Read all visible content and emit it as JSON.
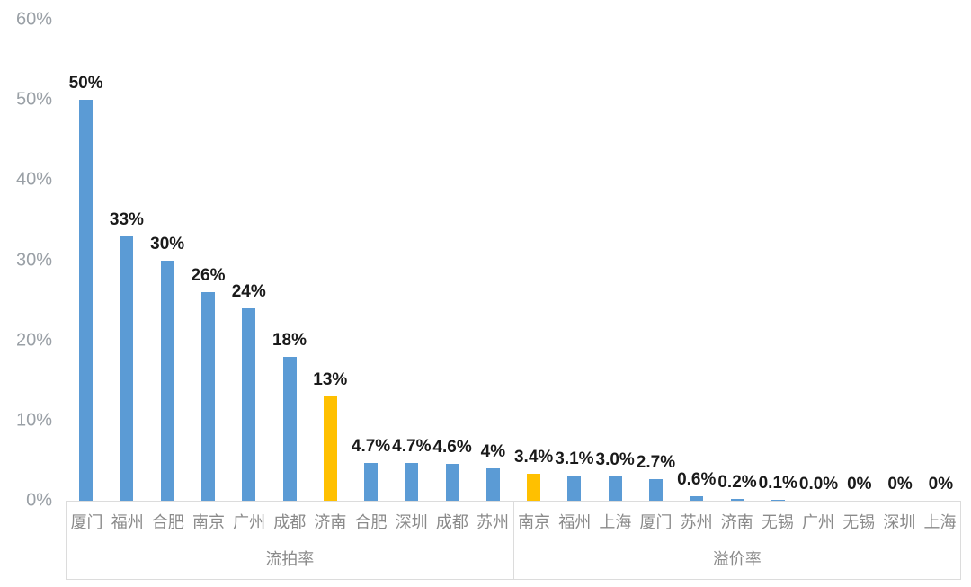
{
  "chart_data": {
    "type": "bar",
    "title": "",
    "xlabel": "",
    "ylabel": "",
    "ylim": [
      0,
      60
    ],
    "grid": false,
    "legend": "none",
    "yticks": [
      {
        "value": 0,
        "label": "0%"
      },
      {
        "value": 10,
        "label": "10%"
      },
      {
        "value": 20,
        "label": "20%"
      },
      {
        "value": 30,
        "label": "30%"
      },
      {
        "value": 40,
        "label": "40%"
      },
      {
        "value": 50,
        "label": "50%"
      },
      {
        "value": 60,
        "label": "60%"
      }
    ],
    "colors": {
      "blue": "#5B9BD5",
      "yellow": "#FFC000",
      "data_label": "#1a1a1a",
      "axis_text": "#8a8a8a",
      "tick_text": "#9aa0a6",
      "box_border": "#dcdcdc"
    },
    "groups": [
      {
        "label": "流拍率",
        "bars": [
          {
            "city": "厦门",
            "value": 50,
            "label": "50%",
            "color": "blue"
          },
          {
            "city": "福州",
            "value": 33,
            "label": "33%",
            "color": "blue"
          },
          {
            "city": "合肥",
            "value": 30,
            "label": "30%",
            "color": "blue"
          },
          {
            "city": "南京",
            "value": 26,
            "label": "26%",
            "color": "blue"
          },
          {
            "city": "广州",
            "value": 24,
            "label": "24%",
            "color": "blue"
          },
          {
            "city": "成都",
            "value": 18,
            "label": "18%",
            "color": "blue"
          },
          {
            "city": "济南",
            "value": 13,
            "label": "13%",
            "color": "yellow"
          },
          {
            "city": "合肥",
            "value": 4.7,
            "label": "4.7%",
            "color": "blue"
          },
          {
            "city": "深圳",
            "value": 4.7,
            "label": "4.7%",
            "color": "blue"
          },
          {
            "city": "成都",
            "value": 4.6,
            "label": "4.6%",
            "color": "blue"
          },
          {
            "city": "苏州",
            "value": 4,
            "label": "4%",
            "color": "blue"
          }
        ]
      },
      {
        "label": "溢价率",
        "bars": [
          {
            "city": "南京",
            "value": 3.4,
            "label": "3.4%",
            "color": "yellow"
          },
          {
            "city": "福州",
            "value": 3.1,
            "label": "3.1%",
            "color": "blue"
          },
          {
            "city": "上海",
            "value": 3.0,
            "label": "3.0%",
            "color": "blue"
          },
          {
            "city": "厦门",
            "value": 2.7,
            "label": "2.7%",
            "color": "blue"
          },
          {
            "city": "苏州",
            "value": 0.6,
            "label": "0.6%",
            "color": "blue"
          },
          {
            "city": "济南",
            "value": 0.2,
            "label": "0.2%",
            "color": "blue"
          },
          {
            "city": "无锡",
            "value": 0.1,
            "label": "0.1%",
            "color": "blue"
          },
          {
            "city": "广州",
            "value": 0.0,
            "label": "0.0%",
            "color": "blue"
          },
          {
            "city": "无锡",
            "value": 0,
            "label": "0%",
            "color": "blue"
          },
          {
            "city": "深圳",
            "value": 0,
            "label": "0%",
            "color": "blue"
          },
          {
            "city": "上海",
            "value": 0,
            "label": "0%",
            "color": "blue"
          }
        ]
      }
    ]
  }
}
